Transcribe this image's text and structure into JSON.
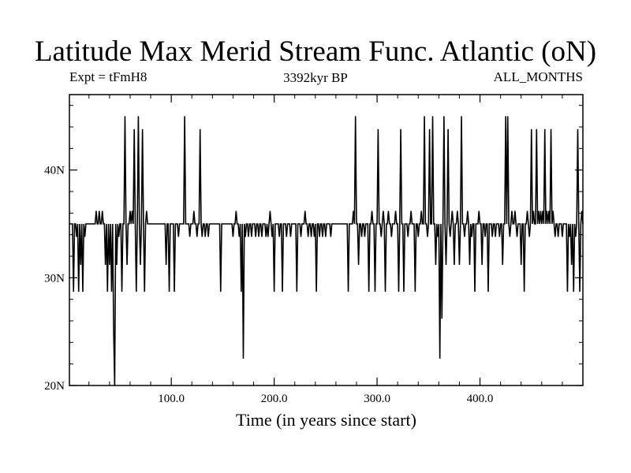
{
  "chart_data": {
    "type": "line",
    "title": "Latitude Max Merid Stream Func. Atlantic (oN)",
    "subtitle_left": "Expt = tFmH8",
    "subtitle_center": "3392kyr BP",
    "subtitle_right": "ALL_MONTHS",
    "xlabel": "Time (in years since start)",
    "ylabel": "",
    "xlim": [
      1,
      500
    ],
    "ylim": [
      20,
      47
    ],
    "x_ticks": [
      {
        "value": 100,
        "label": "100.0"
      },
      {
        "value": 200,
        "label": "200.0"
      },
      {
        "value": 300,
        "label": "300.0"
      },
      {
        "value": 400,
        "label": "400.0"
      }
    ],
    "y_ticks": [
      {
        "value": 20,
        "label": "20N"
      },
      {
        "value": 30,
        "label": "30N"
      },
      {
        "value": 40,
        "label": "40N"
      }
    ],
    "baseline": 35,
    "series": [
      {
        "color": "#000000",
        "spikes": [
          [
            5,
            28.7
          ],
          [
            8,
            33.8
          ],
          [
            10,
            28.7
          ],
          [
            12,
            31.2
          ],
          [
            14,
            28.7
          ],
          [
            16,
            33.8
          ],
          [
            20,
            35
          ],
          [
            27,
            36.2
          ],
          [
            30,
            36.2
          ],
          [
            33,
            36.2
          ],
          [
            36,
            31.2
          ],
          [
            38,
            28.7
          ],
          [
            40,
            31.2
          ],
          [
            42,
            28.7
          ],
          [
            44,
            25
          ],
          [
            45,
            20
          ],
          [
            47,
            31.2
          ],
          [
            49,
            33.8
          ],
          [
            52,
            28.7
          ],
          [
            55,
            45
          ],
          [
            57,
            31.2
          ],
          [
            60,
            36.2
          ],
          [
            62,
            36.2
          ],
          [
            64,
            43.8
          ],
          [
            66,
            28.7
          ],
          [
            68,
            45
          ],
          [
            70,
            31.2
          ],
          [
            72,
            43.8
          ],
          [
            74,
            28.7
          ],
          [
            76,
            36.2
          ],
          [
            95,
            31.2
          ],
          [
            98,
            28.7
          ],
          [
            103,
            28.7
          ],
          [
            107,
            33.8
          ],
          [
            113,
            45
          ],
          [
            118,
            33.8
          ],
          [
            122,
            36.2
          ],
          [
            125,
            33.8
          ],
          [
            128,
            43.8
          ],
          [
            130,
            33.8
          ],
          [
            133,
            33.8
          ],
          [
            136,
            33.8
          ],
          [
            140,
            35
          ],
          [
            148,
            28.7
          ],
          [
            152,
            35
          ],
          [
            160,
            33.8
          ],
          [
            163,
            36.2
          ],
          [
            166,
            33.8
          ],
          [
            168,
            28.7
          ],
          [
            170,
            22.5
          ],
          [
            172,
            33.8
          ],
          [
            175,
            33.8
          ],
          [
            178,
            33.8
          ],
          [
            182,
            33.8
          ],
          [
            185,
            33.8
          ],
          [
            188,
            33.8
          ],
          [
            192,
            33.8
          ],
          [
            194,
            33.8
          ],
          [
            196,
            36.2
          ],
          [
            198,
            33.8
          ],
          [
            200,
            28.7
          ],
          [
            205,
            33.8
          ],
          [
            208,
            28.7
          ],
          [
            212,
            33.8
          ],
          [
            216,
            33.8
          ],
          [
            222,
            28.7
          ],
          [
            226,
            33.8
          ],
          [
            230,
            36.2
          ],
          [
            233,
            33.8
          ],
          [
            236,
            33.8
          ],
          [
            239,
            33.8
          ],
          [
            241,
            28.7
          ],
          [
            244,
            33.8
          ],
          [
            247,
            33.8
          ],
          [
            250,
            33.8
          ],
          [
            255,
            33.8
          ],
          [
            272,
            28.7
          ],
          [
            277,
            36.2
          ],
          [
            279,
            45
          ],
          [
            282,
            31.2
          ],
          [
            285,
            33.8
          ],
          [
            288,
            33.8
          ],
          [
            292,
            28.7
          ],
          [
            295,
            36.2
          ],
          [
            298,
            28.7
          ],
          [
            301,
            43.8
          ],
          [
            304,
            33.8
          ],
          [
            306,
            36.2
          ],
          [
            308,
            28.7
          ],
          [
            311,
            36.2
          ],
          [
            314,
            33.8
          ],
          [
            318,
            36.2
          ],
          [
            321,
            28.7
          ],
          [
            323,
            43.8
          ],
          [
            326,
            28.7
          ],
          [
            330,
            33.8
          ],
          [
            333,
            36.2
          ],
          [
            337,
            28.7
          ],
          [
            340,
            33.8
          ],
          [
            343,
            36.2
          ],
          [
            346,
            45
          ],
          [
            349,
            33.8
          ],
          [
            351,
            43.8
          ],
          [
            354,
            45
          ],
          [
            357,
            31.2
          ],
          [
            359,
            33.8
          ],
          [
            361,
            22.5
          ],
          [
            363,
            26.2
          ],
          [
            365,
            45
          ],
          [
            367,
            31.2
          ],
          [
            369,
            43.8
          ],
          [
            371,
            33.8
          ],
          [
            373,
            36.2
          ],
          [
            375,
            31.2
          ],
          [
            378,
            36.2
          ],
          [
            380,
            31.2
          ],
          [
            382,
            45
          ],
          [
            385,
            33.8
          ],
          [
            388,
            36.2
          ],
          [
            390,
            31.2
          ],
          [
            392,
            33.8
          ],
          [
            395,
            28.7
          ],
          [
            399,
            36.2
          ],
          [
            402,
            31.2
          ],
          [
            405,
            33.8
          ],
          [
            408,
            28.7
          ],
          [
            412,
            33.8
          ],
          [
            415,
            33.8
          ],
          [
            419,
            33.8
          ],
          [
            422,
            31.2
          ],
          [
            425,
            45
          ],
          [
            427,
            45
          ],
          [
            429,
            33.8
          ],
          [
            431,
            36.2
          ],
          [
            434,
            36.2
          ],
          [
            436,
            33.8
          ],
          [
            440,
            31.2
          ],
          [
            443,
            28.7
          ],
          [
            446,
            36.2
          ],
          [
            448,
            33.8
          ],
          [
            450,
            43.8
          ],
          [
            452,
            36.2
          ],
          [
            455,
            43.8
          ],
          [
            457,
            36.2
          ],
          [
            459,
            36.2
          ],
          [
            461,
            36.2
          ],
          [
            463,
            43.8
          ],
          [
            465,
            36.2
          ],
          [
            467,
            36.2
          ],
          [
            469,
            43.8
          ],
          [
            471,
            36.2
          ],
          [
            473,
            33.8
          ],
          [
            476,
            33.8
          ],
          [
            480,
            33.8
          ],
          [
            485,
            28.7
          ],
          [
            487,
            33.8
          ],
          [
            489,
            31.2
          ],
          [
            491,
            28.7
          ],
          [
            493,
            33.8
          ],
          [
            495,
            43.8
          ],
          [
            497,
            28.7
          ],
          [
            499,
            36.2
          ]
        ]
      }
    ],
    "grid": false,
    "legend": "none"
  }
}
